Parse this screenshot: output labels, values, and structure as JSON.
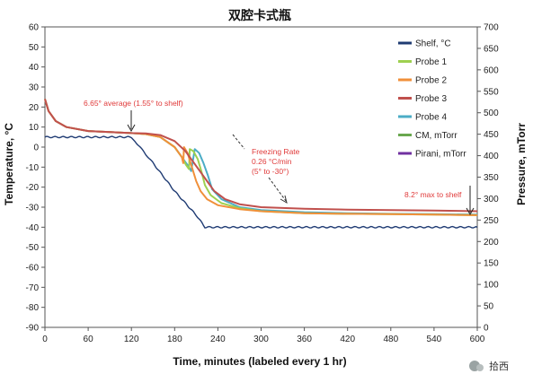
{
  "chart_data": {
    "type": "line",
    "title": "双腔卡式瓶",
    "xlabel": "Time, minutes (labeled every 1 hr)",
    "ylabel": "Temperature, °C",
    "y2label": "Pressure, mTorr",
    "xlim": [
      0,
      600
    ],
    "ylim": [
      -90,
      60
    ],
    "y2lim": [
      0,
      700
    ],
    "x_ticks": [
      0,
      60,
      120,
      180,
      240,
      300,
      360,
      420,
      480,
      540,
      600
    ],
    "y_ticks": [
      60,
      50,
      40,
      30,
      20,
      10,
      0,
      -10,
      -20,
      -30,
      -40,
      -50,
      -60,
      -70,
      -80,
      -90
    ],
    "y2_ticks": [
      700,
      650,
      600,
      550,
      500,
      450,
      400,
      350,
      300,
      250,
      200,
      150,
      100,
      50,
      0
    ],
    "grid": false,
    "legend_position": "top-right",
    "series": [
      {
        "name": "Shelf, °C",
        "color": "#1f3b73",
        "x": [
          0,
          120,
          125,
          150,
          180,
          210,
          222,
          240,
          300,
          360,
          420,
          480,
          540,
          600
        ],
        "y": [
          5,
          5,
          3,
          -8,
          -22,
          -34,
          -40,
          -40,
          -40,
          -40,
          -40,
          -40,
          -40,
          -40
        ]
      },
      {
        "name": "Probe 1",
        "color": "#9ed050",
        "x": [
          0,
          5,
          15,
          30,
          60,
          120,
          140,
          160,
          180,
          190,
          196,
          200,
          201,
          206,
          212,
          217,
          222,
          230,
          245,
          270,
          300,
          360,
          420,
          480,
          540,
          600
        ],
        "y": [
          24,
          18,
          13,
          10,
          8,
          7,
          6.5,
          5,
          0,
          -5,
          -9,
          -11,
          -1,
          -2,
          -6,
          -12,
          -19,
          -24,
          -28,
          -30.5,
          -32,
          -33,
          -33.3,
          -33.5,
          -33.7,
          -34
        ]
      },
      {
        "name": "Probe 2",
        "color": "#f0903a",
        "x": [
          0,
          5,
          15,
          30,
          60,
          120,
          140,
          160,
          180,
          190,
          192,
          193,
          198,
          204,
          210,
          216,
          225,
          240,
          270,
          300,
          360,
          420,
          480,
          540,
          600
        ],
        "y": [
          24,
          18,
          13,
          10,
          8,
          7,
          6.5,
          5,
          0,
          -5,
          -8,
          0,
          -3,
          -10,
          -17,
          -22,
          -26,
          -29,
          -31,
          -32,
          -33,
          -33.3,
          -33.5,
          -33.7,
          -34
        ]
      },
      {
        "name": "Probe 3",
        "color": "#c0504d",
        "x": [
          0,
          5,
          15,
          30,
          60,
          120,
          140,
          160,
          180,
          195,
          205,
          215,
          225,
          235,
          250,
          270,
          300,
          360,
          420,
          480,
          540,
          600
        ],
        "y": [
          24,
          18,
          13,
          10,
          8,
          7,
          6.8,
          6,
          3,
          -2,
          -7,
          -12,
          -17,
          -22,
          -26,
          -28.5,
          -30,
          -30.8,
          -31.2,
          -31.5,
          -31.7,
          -32
        ]
      },
      {
        "name": "Probe 4",
        "color": "#4bacc6",
        "x": [
          0,
          5,
          15,
          30,
          60,
          120,
          140,
          160,
          180,
          190,
          200,
          203,
          208,
          214,
          220,
          226,
          232,
          245,
          270,
          300,
          360,
          420,
          480,
          540,
          600
        ],
        "y": [
          24,
          18,
          13,
          10,
          8,
          7,
          6.5,
          5,
          0,
          -5,
          -10,
          -12,
          -1,
          -3,
          -8,
          -14,
          -21,
          -26,
          -30,
          -31.5,
          -32.5,
          -33,
          -33.3,
          -33.5,
          -33.7
        ]
      },
      {
        "name": "CM, mTorr",
        "color": "#6aa84f",
        "x": [],
        "y": []
      },
      {
        "name": "Pirani, mTorr",
        "color": "#7030a0",
        "x": [],
        "y": []
      }
    ],
    "annotations": [
      {
        "text": "6.65° average (1.55° to shelf)"
      },
      {
        "text": "Freezing Rate"
      },
      {
        "text": "0.26 °C/min"
      },
      {
        "text": "(5° to -30°)"
      },
      {
        "text": "8.2° max to shelf"
      }
    ]
  },
  "watermark": {
    "text": "拾西"
  }
}
